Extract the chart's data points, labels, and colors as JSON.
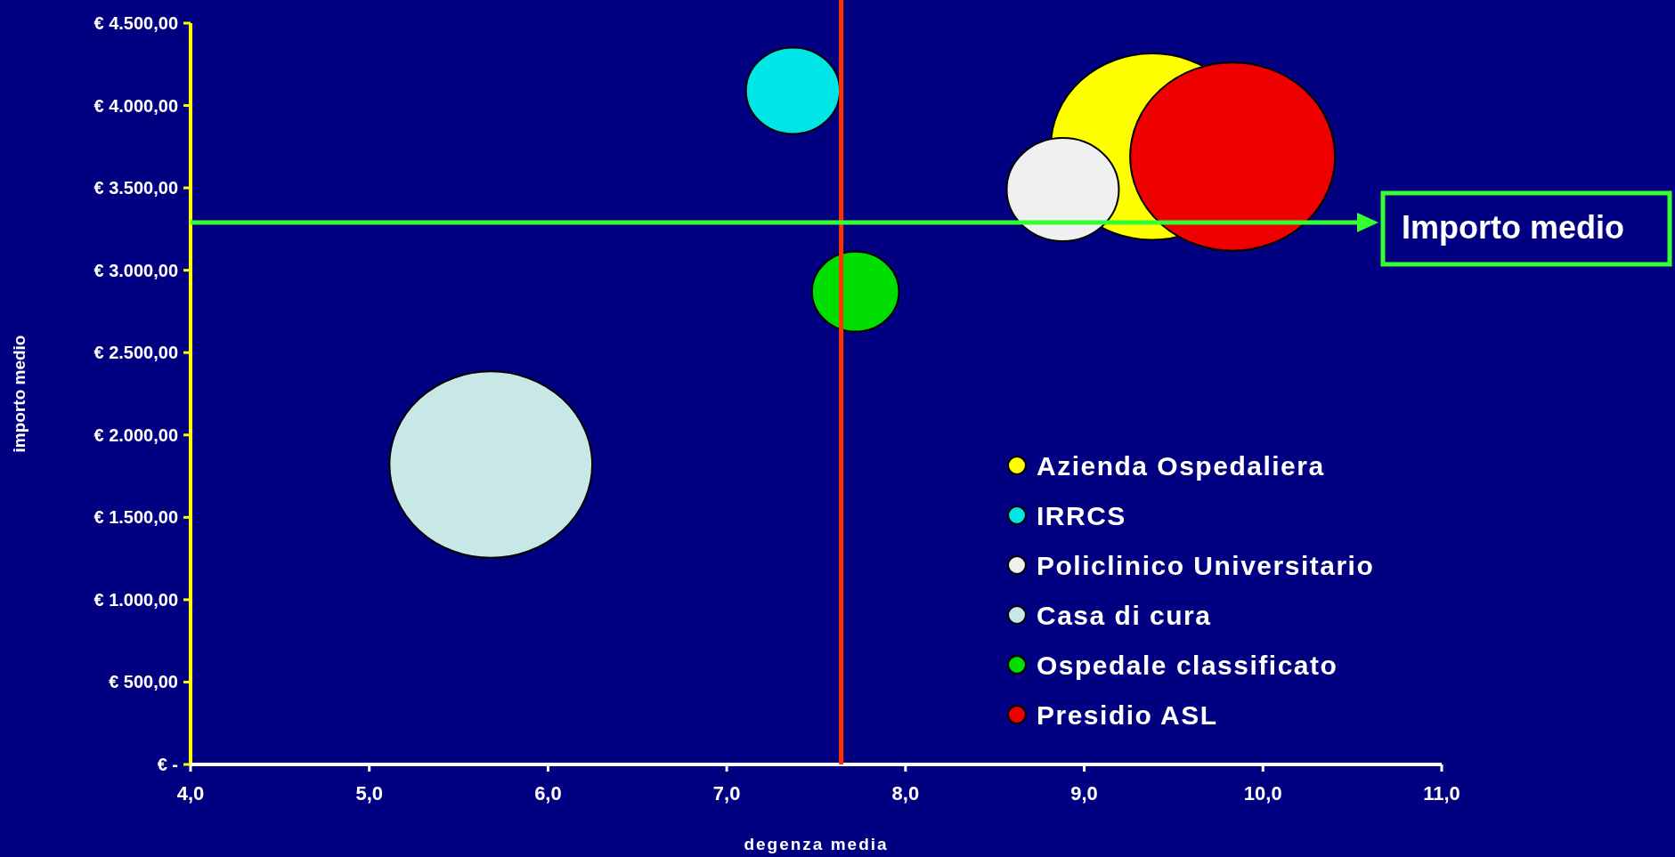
{
  "chart_data": {
    "type": "bubble",
    "xlabel": "degenza media",
    "ylabel": "importo medio",
    "xlim": [
      4,
      11
    ],
    "xticks": [
      {
        "value": 4,
        "label": "4,0"
      },
      {
        "value": 5,
        "label": "5,0"
      },
      {
        "value": 6,
        "label": "6,0"
      },
      {
        "value": 7,
        "label": "7,0"
      },
      {
        "value": 8,
        "label": "8,0"
      },
      {
        "value": 9,
        "label": "9,0"
      },
      {
        "value": 10,
        "label": "10,0"
      },
      {
        "value": 11,
        "label": "11,0"
      }
    ],
    "ylim": [
      0,
      4500
    ],
    "yticks": [
      {
        "value": 0,
        "label": "€ -"
      },
      {
        "value": 500,
        "label": "€ 500,00"
      },
      {
        "value": 1000,
        "label": "€ 1.000,00"
      },
      {
        "value": 1500,
        "label": "€ 1.500,00"
      },
      {
        "value": 2000,
        "label": "€ 2.000,00"
      },
      {
        "value": 2500,
        "label": "€ 2.500,00"
      },
      {
        "value": 3000,
        "label": "€ 3.000,00"
      },
      {
        "value": 3500,
        "label": "€ 3.500,00"
      },
      {
        "value": 4000,
        "label": "€ 4.000,00"
      },
      {
        "value": 4500,
        "label": "€ 4.500,00"
      }
    ],
    "grid": false,
    "legend": "bottom right",
    "series": [
      {
        "name": "Azienda Ospedaliera",
        "color": "#ffff00",
        "x": [
          9.38
        ],
        "values": [
          3750
        ],
        "sizes": [
          0.98
        ]
      },
      {
        "name": "IRRCS",
        "color": "#00e5e5",
        "x": [
          7.37
        ],
        "values": [
          4090
        ],
        "sizes": [
          0.21
        ]
      },
      {
        "name": "Policlinico Universitario",
        "color": "#f0f0f0",
        "x": [
          8.88
        ],
        "values": [
          3490
        ],
        "sizes": [
          0.3
        ]
      },
      {
        "name": "Casa di cura",
        "color": "#c8e8e8",
        "x": [
          5.68
        ],
        "values": [
          1820
        ],
        "sizes": [
          0.98
        ]
      },
      {
        "name": "Ospedale classificato",
        "color": "#00dd00",
        "x": [
          7.72
        ],
        "values": [
          2870
        ],
        "sizes": [
          0.18
        ]
      },
      {
        "name": "Presidio ASL",
        "color": "#ee0000",
        "x": [
          9.83
        ],
        "values": [
          3690
        ],
        "sizes": [
          1
        ]
      }
    ],
    "ref_lines": [
      {
        "axis": "x",
        "value": 7.64,
        "color": "#ff3300"
      },
      {
        "axis": "y",
        "value": 3290,
        "label": "Importo medio",
        "color": "#33ff33"
      }
    ]
  }
}
